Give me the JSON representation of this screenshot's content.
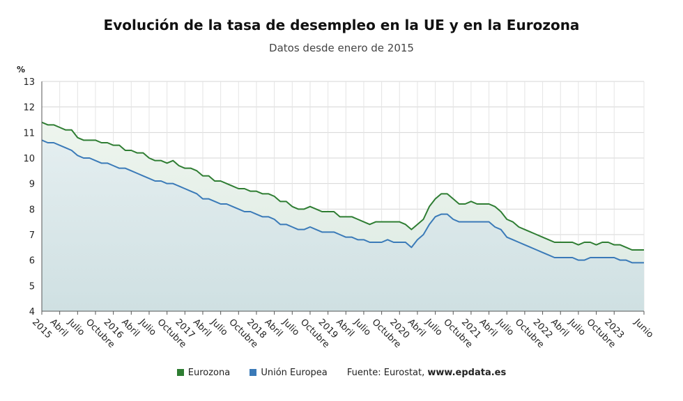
{
  "chart_data": {
    "type": "line",
    "title": "Evolución de la tasa de desempleo en la UE y en la Eurozona",
    "subtitle": "Datos desde enero de 2015",
    "y_unit": "%",
    "ylim": [
      4,
      13
    ],
    "y_ticks": [
      4,
      5,
      6,
      7,
      8,
      9,
      10,
      11,
      12,
      13
    ],
    "grid": true,
    "legend_position": "bottom",
    "x_start": "2015-01",
    "x_end": "2023-06",
    "x_tick_labels": [
      "2015",
      "Abril",
      "Julio",
      "Octubre",
      "2016",
      "Abril",
      "Julio",
      "Octubre",
      "2017",
      "Abril",
      "Julio",
      "Octubre",
      "2018",
      "Abril",
      "Julio",
      "Octubre",
      "2019",
      "Abril",
      "Julio",
      "Octubre",
      "2020",
      "Abril",
      "Julio",
      "Octubre",
      "2021",
      "Abril",
      "Julio",
      "Octubre",
      "2022",
      "Abril",
      "Julio",
      "Octubre",
      "2023",
      "Junio"
    ],
    "series": [
      {
        "name": "Eurozona",
        "color": "#2e7d32",
        "values": [
          11.4,
          11.3,
          11.3,
          11.2,
          11.1,
          11.1,
          10.8,
          10.7,
          10.7,
          10.7,
          10.6,
          10.6,
          10.5,
          10.5,
          10.3,
          10.3,
          10.2,
          10.2,
          10.0,
          9.9,
          9.9,
          9.8,
          9.9,
          9.7,
          9.6,
          9.6,
          9.5,
          9.3,
          9.3,
          9.1,
          9.1,
          9.0,
          8.9,
          8.8,
          8.8,
          8.7,
          8.7,
          8.6,
          8.6,
          8.5,
          8.3,
          8.3,
          8.1,
          8.0,
          8.0,
          8.1,
          8.0,
          7.9,
          7.9,
          7.9,
          7.7,
          7.7,
          7.7,
          7.6,
          7.5,
          7.4,
          7.5,
          7.5,
          7.5,
          7.5,
          7.5,
          7.4,
          7.2,
          7.4,
          7.6,
          8.1,
          8.4,
          8.6,
          8.6,
          8.4,
          8.2,
          8.2,
          8.3,
          8.2,
          8.2,
          8.2,
          8.1,
          7.9,
          7.6,
          7.5,
          7.3,
          7.2,
          7.1,
          7.0,
          6.9,
          6.8,
          6.7,
          6.7,
          6.7,
          6.7,
          6.6,
          6.7,
          6.7,
          6.6,
          6.7,
          6.7,
          6.6,
          6.6,
          6.5,
          6.4,
          6.4,
          6.4
        ]
      },
      {
        "name": "Unión Europea",
        "color": "#3a7ab8",
        "values": [
          10.7,
          10.6,
          10.6,
          10.5,
          10.4,
          10.3,
          10.1,
          10.0,
          10.0,
          9.9,
          9.8,
          9.8,
          9.7,
          9.6,
          9.6,
          9.5,
          9.4,
          9.3,
          9.2,
          9.1,
          9.1,
          9.0,
          9.0,
          8.9,
          8.8,
          8.7,
          8.6,
          8.4,
          8.4,
          8.3,
          8.2,
          8.2,
          8.1,
          8.0,
          7.9,
          7.9,
          7.8,
          7.7,
          7.7,
          7.6,
          7.4,
          7.4,
          7.3,
          7.2,
          7.2,
          7.3,
          7.2,
          7.1,
          7.1,
          7.1,
          7.0,
          6.9,
          6.9,
          6.8,
          6.8,
          6.7,
          6.7,
          6.7,
          6.8,
          6.7,
          6.7,
          6.7,
          6.5,
          6.8,
          7.0,
          7.4,
          7.7,
          7.8,
          7.8,
          7.6,
          7.5,
          7.5,
          7.5,
          7.5,
          7.5,
          7.5,
          7.3,
          7.2,
          6.9,
          6.8,
          6.7,
          6.6,
          6.5,
          6.4,
          6.3,
          6.2,
          6.1,
          6.1,
          6.1,
          6.1,
          6.0,
          6.0,
          6.1,
          6.1,
          6.1,
          6.1,
          6.1,
          6.0,
          6.0,
          5.9,
          5.9,
          5.9
        ]
      }
    ]
  },
  "legend": {
    "items": [
      {
        "label": "Eurozona",
        "color": "#2e7d32"
      },
      {
        "label": "Unión Europea",
        "color": "#3a7ab8"
      }
    ],
    "source_prefix": "Fuente: Eurostat, ",
    "source_site": "www.epdata.es"
  }
}
